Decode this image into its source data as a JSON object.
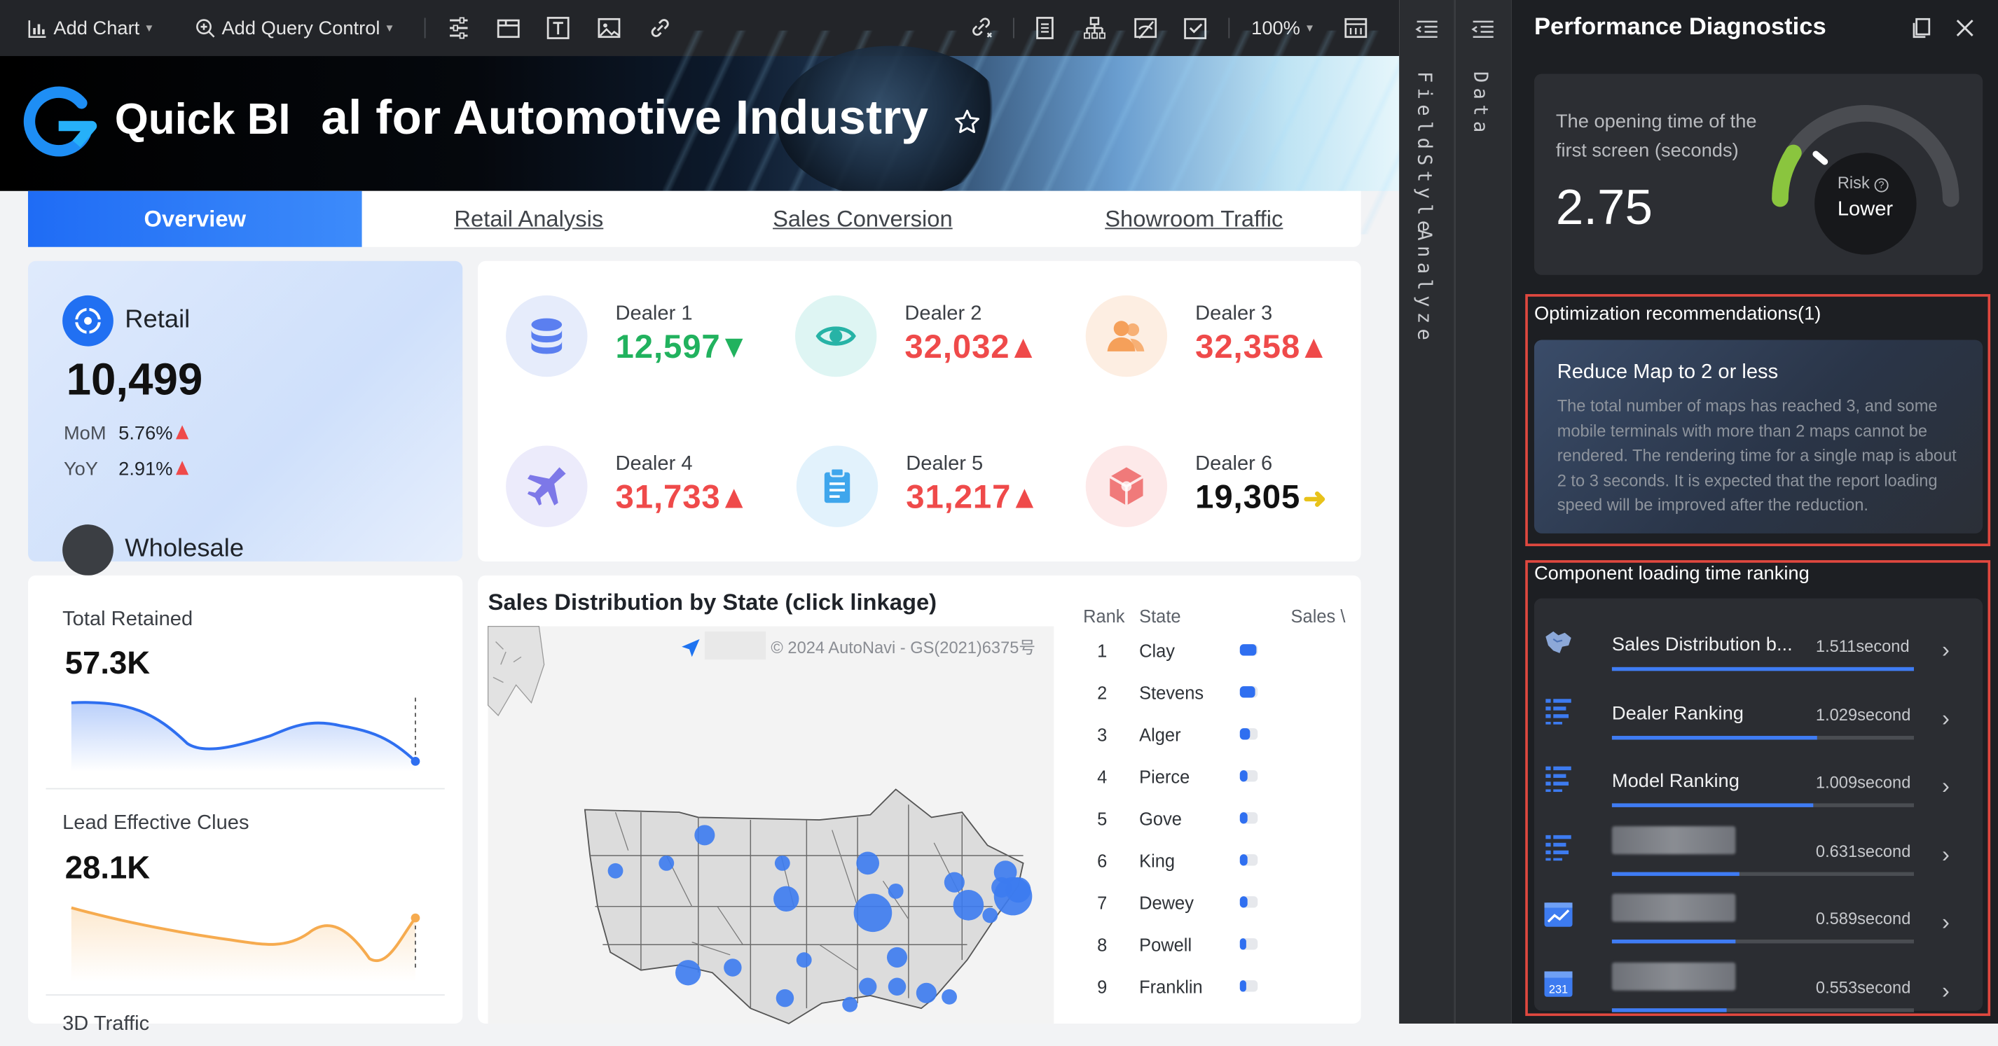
{
  "toolbar": {
    "add_chart": "Add Chart",
    "add_query_control": "Add Query Control",
    "zoom": "100%"
  },
  "banner": {
    "brand": "Quick BI",
    "title": "al for Automotive Industry"
  },
  "tabs": [
    {
      "label": "Overview",
      "active": true
    },
    {
      "label": "Retail Analysis",
      "active": false
    },
    {
      "label": "Sales Conversion",
      "active": false
    },
    {
      "label": "Showroom Traffic",
      "active": false
    }
  ],
  "retail": {
    "label": "Retail",
    "value": "10,499",
    "mom_label": "MoM",
    "mom_value": "5.76%",
    "yoy_label": "YoY",
    "yoy_value": "2.91%",
    "next_label": "Wholesale"
  },
  "dealers": [
    {
      "name": "Dealer 1",
      "value": "12,597",
      "trend": "down",
      "color": "#21b25e",
      "icon": "database-icon",
      "icon_bg": "#e6ecfb",
      "icon_color": "#5b7ff0"
    },
    {
      "name": "Dealer 2",
      "value": "32,032",
      "trend": "up",
      "color": "#ef4a4a",
      "icon": "eye-icon",
      "icon_bg": "#def5f3",
      "icon_color": "#27b3a6"
    },
    {
      "name": "Dealer 3",
      "value": "32,358",
      "trend": "up",
      "color": "#ef4a4a",
      "icon": "users-icon",
      "icon_bg": "#fdeee2",
      "icon_color": "#f5a05a"
    },
    {
      "name": "Dealer 4",
      "value": "31,733",
      "trend": "up",
      "color": "#ef4a4a",
      "icon": "airplane-icon",
      "icon_bg": "#ecebfb",
      "icon_color": "#7d78e8"
    },
    {
      "name": "Dealer 5",
      "value": "31,217",
      "trend": "up",
      "color": "#ef4a4a",
      "icon": "clipboard-icon",
      "icon_bg": "#e2f2fc",
      "icon_color": "#3fa6ec"
    },
    {
      "name": "Dealer 6",
      "value": "19,305",
      "trend": "flat",
      "color": "#111111",
      "icon": "cube-icon",
      "icon_bg": "#fde9e9",
      "icon_color": "#f07a7a"
    }
  ],
  "total_retained": {
    "label": "Total Retained",
    "value": "57.3K"
  },
  "lead_clues": {
    "label": "Lead Effective Clues",
    "value": "28.1K"
  },
  "next_kpi_label": "3D Traffic",
  "map": {
    "title": "Sales Distribution by State (click linkage)",
    "attribution": "© 2024 AutoNavi - GS(2021)6375号"
  },
  "rank_table": {
    "headers": [
      "Rank",
      "State",
      "Sales \\"
    ],
    "rows": [
      {
        "rank": "1",
        "state": "Clay",
        "pct": 0.95
      },
      {
        "rank": "2",
        "state": "Stevens",
        "pct": 0.85
      },
      {
        "rank": "3",
        "state": "Alger",
        "pct": 0.6
      },
      {
        "rank": "4",
        "state": "Pierce",
        "pct": 0.45
      },
      {
        "rank": "5",
        "state": "Gove",
        "pct": 0.45
      },
      {
        "rank": "6",
        "state": "King",
        "pct": 0.4
      },
      {
        "rank": "7",
        "state": "Dewey",
        "pct": 0.4
      },
      {
        "rank": "8",
        "state": "Powell",
        "pct": 0.35
      },
      {
        "rank": "9",
        "state": "Franklin",
        "pct": 0.35
      }
    ]
  },
  "side_tabs": {
    "field": "Field",
    "style": "Style",
    "analyze": "Analyze",
    "data": "Data"
  },
  "perf": {
    "title": "Performance Diagnostics",
    "opening_label": "The opening time of the first screen (seconds)",
    "opening_value": "2.75",
    "risk_label": "Risk",
    "risk_value": "Lower",
    "gauge_level": 0.18,
    "opt_header": "Optimization recommendations(1)",
    "opt_title": "Reduce Map to 2 or less",
    "opt_text": "The total number of maps has reached 3, and some mobile terminals with more than 2 maps cannot be rendered. The rendering time for a single map is about 2 to 3 seconds. It is expected that the report loading speed will be improved after the reduction.",
    "rank_header": "Component loading time ranking",
    "rankings": [
      {
        "name": "Sales Distribution b...",
        "time": "1.511second",
        "ratio": 1.0,
        "icon": "map-icon"
      },
      {
        "name": "Dealer Ranking",
        "time": "1.029second",
        "ratio": 0.68,
        "icon": "list-icon"
      },
      {
        "name": "Model Ranking",
        "time": "1.009second",
        "ratio": 0.665,
        "icon": "list-icon"
      },
      {
        "name": "",
        "time": "0.631second",
        "ratio": 0.42,
        "icon": "list-icon"
      },
      {
        "name": "",
        "time": "0.589second",
        "ratio": 0.41,
        "icon": "line-chart-icon"
      },
      {
        "name": "",
        "time": "0.553second",
        "ratio": 0.38,
        "icon": "calendar-icon"
      }
    ]
  }
}
